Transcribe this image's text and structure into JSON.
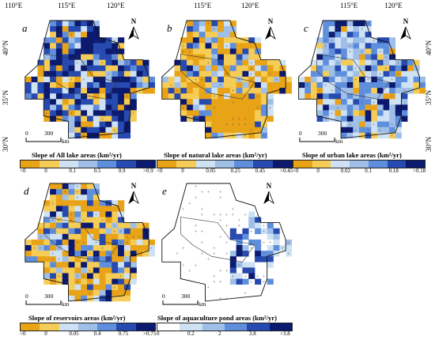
{
  "axes": {
    "longitudes": [
      "110°E",
      "115°E",
      "120°E"
    ],
    "latitudes": [
      "40°N",
      "35°N",
      "30°N"
    ]
  },
  "scale_bar": {
    "zero": "0",
    "distance": "300",
    "unit": "km"
  },
  "north_label": "N",
  "panels": [
    {
      "letter": "a",
      "title": "Slope of All lake areas (km²/yr)",
      "legend_ticks": [
        "<0",
        "0",
        "0.1",
        "0.5",
        "0.9",
        ">0.9"
      ],
      "legend_colors": [
        "#e8a317",
        "#f5cc55",
        "#cfe2f3",
        "#9fbfe8",
        "#5f8fdc",
        "#274ab0",
        "#0b1a6e"
      ]
    },
    {
      "letter": "b",
      "title": "Slope of natural lake areas (km²/yr)",
      "legend_ticks": [
        "<0",
        "0",
        "0.05",
        "0.25",
        "0.45",
        ">0.45"
      ],
      "legend_colors": [
        "#e8a317",
        "#f5cc55",
        "#cfe2f3",
        "#9fbfe8",
        "#5f8fdc",
        "#274ab0",
        "#0b1a6e"
      ]
    },
    {
      "letter": "c",
      "title": "Slope of urban lake areas (km²/yr)",
      "legend_ticks": [
        "<0",
        "0",
        "0.02",
        "0.1",
        "0.18",
        ">0.18"
      ],
      "legend_colors": [
        "#e8a317",
        "#f5cc55",
        "#cfe2f3",
        "#9fbfe8",
        "#5f8fdc",
        "#274ab0",
        "#0b1a6e"
      ]
    },
    {
      "letter": "d",
      "title": "Slope of reservoirs areas (km²/yr)",
      "legend_ticks": [
        "<0",
        "0",
        "0.05",
        "0.4",
        "0.75",
        ">0.75"
      ],
      "legend_colors": [
        "#e8a317",
        "#f5cc55",
        "#cfe2f3",
        "#9fbfe8",
        "#5f8fdc",
        "#274ab0",
        "#0b1a6e"
      ]
    },
    {
      "letter": "e",
      "title": "Slope of aquaculture pond areas (km²/yr)",
      "legend_ticks": [
        "0",
        "0.2",
        "2",
        "3.8",
        ">3.8"
      ],
      "legend_colors": [
        "#ffffff",
        "#cfe2f3",
        "#9fbfe8",
        "#5f8fdc",
        "#274ab0",
        "#0b1a6e"
      ]
    }
  ]
}
